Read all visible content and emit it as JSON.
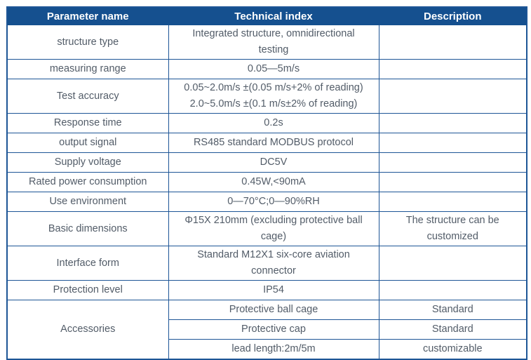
{
  "colors": {
    "header_bg": "#15508f",
    "header_text": "#ffffff",
    "border": "#1d5596",
    "body_text": "#525c68"
  },
  "table": {
    "columns": {
      "param": "Parameter name",
      "index": "Technical index",
      "desc": "Description"
    },
    "rows": [
      {
        "param": "structure type",
        "index": "Integrated structure, omnidirectional\ntesting",
        "desc": ""
      },
      {
        "param": "measuring range",
        "index": "0.05—5m/s",
        "desc": ""
      },
      {
        "param": "Test accuracy",
        "index": "0.05~2.0m/s ±(0.05 m/s+2% of reading)\n2.0~5.0m/s ±(0.1 m/s±2% of reading)",
        "desc": ""
      },
      {
        "param": "Response time",
        "index": "0.2s",
        "desc": ""
      },
      {
        "param": "output signal",
        "index": "RS485 standard MODBUS protocol",
        "desc": ""
      },
      {
        "param": "Supply voltage",
        "index": "DC5V",
        "desc": ""
      },
      {
        "param": "Rated power consumption",
        "index": "0.45W,<90mA",
        "desc": ""
      },
      {
        "param": "Use environment",
        "index": "0—70°C;0—90%RH",
        "desc": ""
      },
      {
        "param": "Basic dimensions",
        "index": "Φ15X 210mm (excluding protective ball\ncage)",
        "desc": "The structure can be\ncustomized"
      },
      {
        "param": "Interface form",
        "index": "Standard M12X1 six-core aviation\nconnector",
        "desc": ""
      },
      {
        "param": "Protection level",
        "index": "IP54",
        "desc": ""
      }
    ],
    "accessories": {
      "param": "Accessories",
      "items": [
        {
          "index": "Protective ball cage",
          "desc": "Standard"
        },
        {
          "index": "Protective cap",
          "desc": "Standard"
        },
        {
          "index": "lead length:2m/5m",
          "desc": "customizable"
        }
      ]
    }
  }
}
